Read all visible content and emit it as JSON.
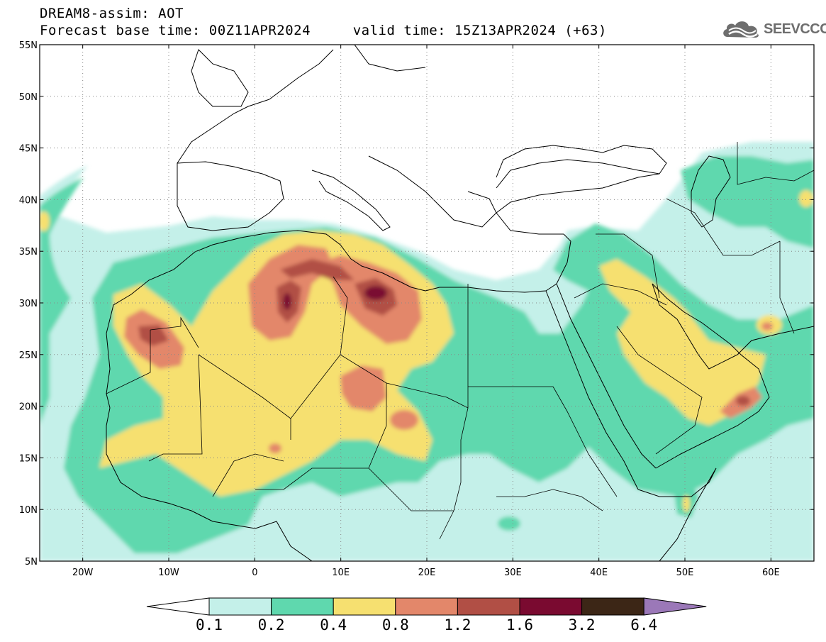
{
  "header": {
    "title_line1": "DREAM8-assim: AOT",
    "title_line2": "Forecast base time: 00Z11APR2024     valid time: 15Z13APR2024 (+63)",
    "logo_text": "SEEVCCC",
    "logo_icon": "cloud-icon"
  },
  "map": {
    "lon_range": [
      -25,
      65
    ],
    "lat_range": [
      5,
      55
    ],
    "grid": true,
    "lat_ticks": [
      {
        "value": 55,
        "label": "55N"
      },
      {
        "value": 50,
        "label": "50N"
      },
      {
        "value": 45,
        "label": "45N"
      },
      {
        "value": 40,
        "label": "40N"
      },
      {
        "value": 35,
        "label": "35N"
      },
      {
        "value": 30,
        "label": "30N"
      },
      {
        "value": 25,
        "label": "25N"
      },
      {
        "value": 20,
        "label": "20N"
      },
      {
        "value": 15,
        "label": "15N"
      },
      {
        "value": 10,
        "label": "10N"
      },
      {
        "value": 5,
        "label": "5N"
      }
    ],
    "lon_ticks": [
      {
        "value": -20,
        "label": "20W"
      },
      {
        "value": -10,
        "label": "10W"
      },
      {
        "value": 0,
        "label": "0"
      },
      {
        "value": 10,
        "label": "10E"
      },
      {
        "value": 20,
        "label": "20E"
      },
      {
        "value": 30,
        "label": "30E"
      },
      {
        "value": 40,
        "label": "40E"
      },
      {
        "value": 50,
        "label": "50E"
      },
      {
        "value": 60,
        "label": "60E"
      }
    ]
  },
  "colorbar": {
    "labels": [
      "0.1",
      "0.2",
      "0.4",
      "0.8",
      "1.2",
      "1.6",
      "3.2",
      "6.4"
    ],
    "colors": {
      "below": "#ffffff",
      "c1": "#c4f0e9",
      "c2": "#5fd8ae",
      "c3": "#f6e070",
      "c4": "#e3876a",
      "c5": "#b14f45",
      "c6": "#7a0a30",
      "c7": "#3c2616",
      "above": "#9b78b8"
    }
  }
}
